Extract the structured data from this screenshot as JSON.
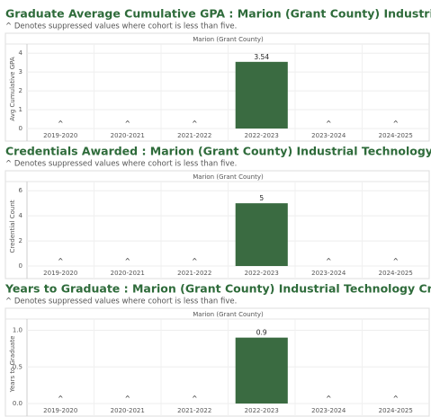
{
  "chart_data": [
    {
      "type": "bar",
      "title": "Graduate Average Cumulative GPA : Marion (Grant County) Industrial Technology Credentials",
      "subtitle": "^ Denotes suppressed values where cohort is less than five.",
      "panel_label": "Marion (Grant County)",
      "y_label": "Avg Cumulative GPA",
      "categories": [
        "2019-2020",
        "2020-2021",
        "2021-2022",
        "2022-2023",
        "2023-2024",
        "2024-2025"
      ],
      "values": [
        null,
        null,
        null,
        3.54,
        null,
        null
      ],
      "value_labels": [
        "^",
        "^",
        "^",
        "3.54",
        "^",
        "^"
      ],
      "color": "#3a6b41",
      "ylim": [
        0,
        4.2
      ],
      "yticks": [
        0,
        1,
        2,
        3,
        4
      ],
      "grid": true
    },
    {
      "type": "bar",
      "title": "Credentials Awarded : Marion (Grant County) Industrial Technology Credentials",
      "subtitle": "^ Denotes suppressed values where cohort is less than five.",
      "panel_label": "Marion (Grant County)",
      "y_label": "Credential Count",
      "categories": [
        "2019-2020",
        "2020-2021",
        "2021-2022",
        "2022-2023",
        "2023-2024",
        "2024-2025"
      ],
      "values": [
        null,
        null,
        null,
        5,
        null,
        null
      ],
      "value_labels": [
        "^",
        "^",
        "^",
        "5",
        "^",
        "^"
      ],
      "color": "#3a6b41",
      "ylim": [
        0,
        6.3
      ],
      "yticks": [
        0,
        2,
        4,
        6
      ],
      "grid": true
    },
    {
      "type": "bar",
      "title": "Years to Graduate : Marion (Grant County) Industrial Technology Credentials",
      "subtitle": "^ Denotes suppressed values where cohort is less than five.",
      "panel_label": "Marion (Grant County)",
      "y_label": "Years to Graduate",
      "categories": [
        "2019-2020",
        "2020-2021",
        "2021-2022",
        "2022-2023",
        "2023-2024",
        "2024-2025"
      ],
      "values": [
        null,
        null,
        null,
        0.9,
        null,
        null
      ],
      "value_labels": [
        "^",
        "^",
        "^",
        "0.9",
        "^",
        "^"
      ],
      "color": "#3a6b41",
      "ylim": [
        0,
        1.08
      ],
      "yticks": [
        {
          "value": 0,
          "label": "0.0"
        },
        0.5,
        {
          "value": 1,
          "label": "1.0"
        }
      ],
      "grid": true
    }
  ]
}
